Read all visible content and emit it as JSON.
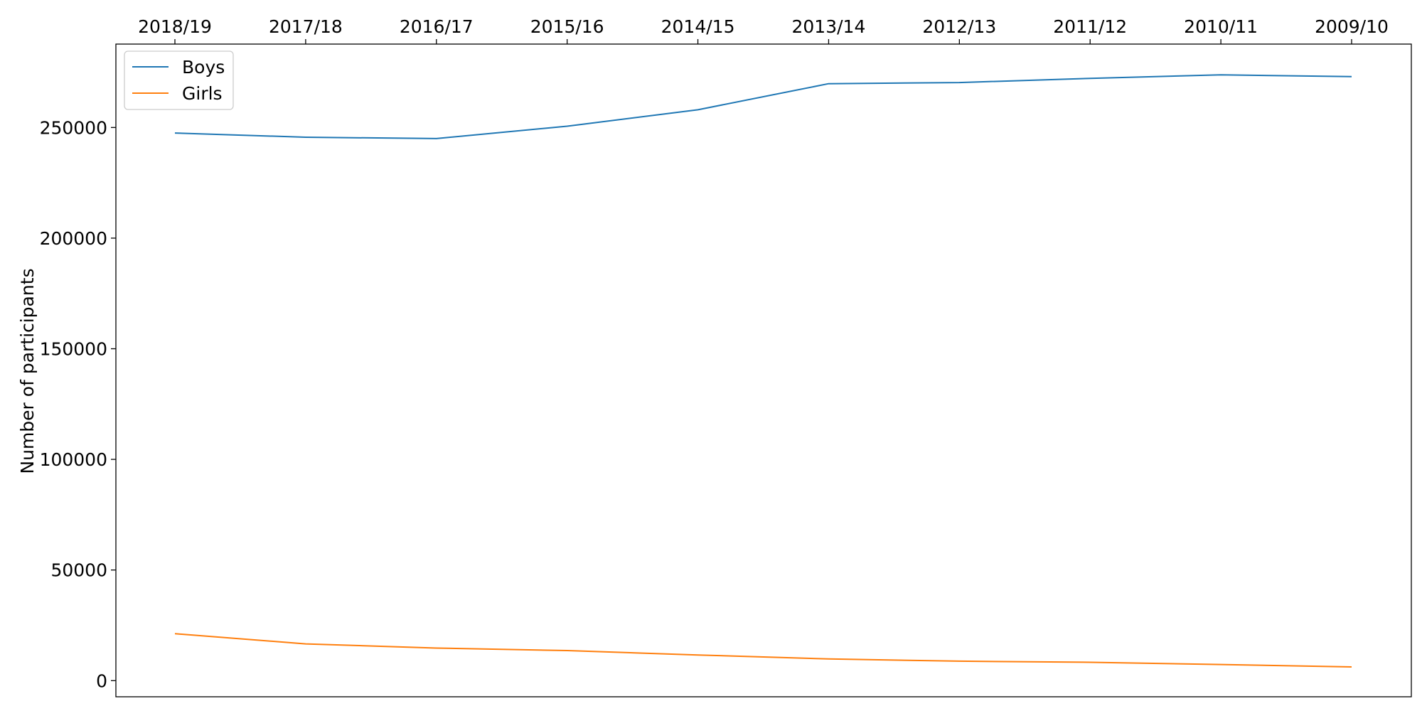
{
  "chart_data": {
    "type": "line",
    "title": "",
    "xlabel": "",
    "ylabel": "Number of participants",
    "categories": [
      "2018/19",
      "2017/18",
      "2016/17",
      "2015/16",
      "2014/15",
      "2013/14",
      "2012/13",
      "2011/12",
      "2010/11",
      "2009/10"
    ],
    "series": [
      {
        "name": "Boys",
        "color": "#1f77b4",
        "values": [
          247500,
          245600,
          245000,
          250600,
          258000,
          269800,
          270300,
          272200,
          273800,
          273000
        ]
      },
      {
        "name": "Girls",
        "color": "#ff7f0e",
        "values": [
          21200,
          16600,
          14700,
          13600,
          11600,
          9800,
          8800,
          8300,
          7300,
          6200
        ]
      }
    ],
    "yticks": [
      0,
      50000,
      100000,
      150000,
      200000,
      250000
    ],
    "ylim": [
      -7300,
      287700
    ],
    "x_axis_position": "top",
    "legend_position": "top-left",
    "grid": false
  }
}
